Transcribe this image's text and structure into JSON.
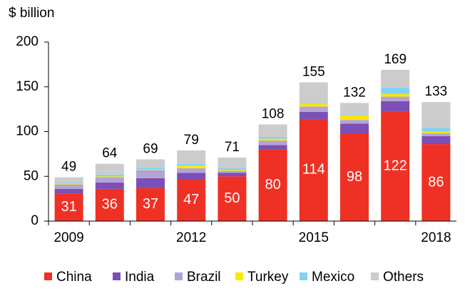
{
  "chart_data": {
    "type": "stacked-bar",
    "y_label": "$ billion",
    "categories": [
      "2009",
      null,
      null,
      "2012",
      null,
      null,
      "2015",
      null,
      null,
      "2018"
    ],
    "series": [
      {
        "name": "China",
        "color": "#ee3124",
        "values": [
          31,
          36,
          37,
          47,
          50,
          80,
          114,
          98,
          122,
          86
        ]
      },
      {
        "name": "India",
        "color": "#7b4fb5",
        "values": [
          5,
          7,
          11,
          7,
          4,
          5,
          8,
          11,
          12,
          9
        ]
      },
      {
        "name": "Brazil",
        "color": "#b3a3d8",
        "values": [
          5,
          6,
          9,
          5,
          2,
          5,
          6,
          4,
          5,
          3
        ]
      },
      {
        "name": "Turkey",
        "color": "#ffe600",
        "values": [
          1,
          1,
          1,
          3,
          1,
          2,
          3,
          5,
          3,
          2
        ]
      },
      {
        "name": "Mexico",
        "color": "#7fd3f7",
        "values": [
          1,
          2,
          2,
          2,
          2,
          2,
          1,
          1,
          7,
          4
        ]
      },
      {
        "name": "Others",
        "color": "#cccccc",
        "values": [
          6,
          12,
          9,
          15,
          12,
          14,
          23,
          13,
          20,
          29
        ]
      }
    ],
    "totals": [
      49,
      64,
      69,
      79,
      71,
      108,
      155,
      132,
      169,
      133
    ],
    "ylim": [
      0,
      200
    ],
    "yticks": [
      0,
      50,
      100,
      150,
      200
    ]
  }
}
